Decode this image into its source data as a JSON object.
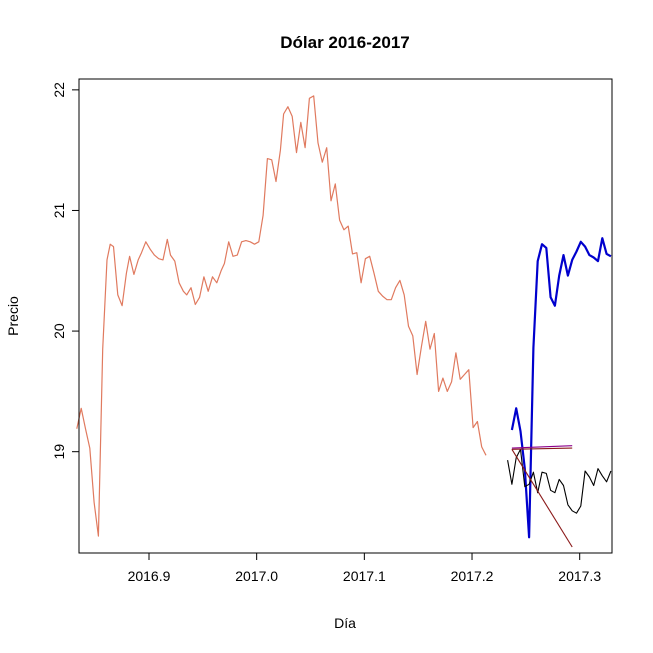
{
  "chart_data": {
    "type": "line",
    "title": "Dólar 2016-2017",
    "xlabel": "Día",
    "ylabel": "Precio",
    "xlim": [
      2016.835,
      2017.33
    ],
    "ylim": [
      18.16,
      22.09
    ],
    "x_ticks": [
      {
        "value": 2016.9,
        "label": "2016.9"
      },
      {
        "value": 2017.0,
        "label": "2017.0"
      },
      {
        "value": 2017.1,
        "label": "2017.1"
      },
      {
        "value": 2017.2,
        "label": "2017.2"
      },
      {
        "value": 2017.3,
        "label": "2017.3"
      }
    ],
    "y_ticks": [
      {
        "value": 19,
        "label": "19"
      },
      {
        "value": 20,
        "label": "20"
      },
      {
        "value": 21,
        "label": "21"
      },
      {
        "value": 22,
        "label": "22"
      }
    ],
    "series": [
      {
        "color": "#e07a5f",
        "width": 1.2,
        "x": [
          2016.833,
          2016.837,
          2016.841,
          2016.845,
          2016.849,
          2016.853,
          2016.857,
          2016.861,
          2016.864,
          2016.867,
          2016.871,
          2016.875,
          2016.879,
          2016.882,
          2016.886,
          2016.89,
          2016.893,
          2016.897,
          2016.901,
          2016.905,
          2016.909,
          2016.913,
          2016.917,
          2016.92,
          2016.924,
          2016.928,
          2016.932,
          2016.935,
          2016.939,
          2016.943,
          2016.947,
          2016.951,
          2016.955,
          2016.959,
          2016.963,
          2016.967,
          2016.97,
          2016.974,
          2016.978,
          2016.982,
          2016.986,
          2016.99,
          2016.994,
          2016.998,
          2017.002,
          2017.006,
          2017.01,
          2017.014,
          2017.018,
          2017.022,
          2017.025,
          2017.029,
          2017.033,
          2017.037,
          2017.041,
          2017.045,
          2017.049,
          2017.053,
          2017.057,
          2017.061,
          2017.065,
          2017.069,
          2017.073,
          2017.077,
          2017.081,
          2017.085,
          2017.089,
          2017.093,
          2017.097,
          2017.101,
          2017.105,
          2017.109,
          2017.113,
          2017.117,
          2017.121,
          2017.125,
          2017.129,
          2017.133,
          2017.137,
          2017.141,
          2017.145,
          2017.149,
          2017.153,
          2017.157,
          2017.161,
          2017.165,
          2017.169,
          2017.173,
          2017.177,
          2017.181,
          2017.185,
          2017.189,
          2017.193,
          2017.197,
          2017.201,
          2017.205,
          2017.209,
          2017.213
        ],
        "y": [
          19.19,
          19.36,
          19.19,
          19.03,
          18.58,
          18.3,
          19.85,
          20.59,
          20.72,
          20.7,
          20.3,
          20.21,
          20.48,
          20.62,
          20.47,
          20.59,
          20.65,
          20.74,
          20.68,
          20.63,
          20.6,
          20.59,
          20.76,
          20.63,
          20.58,
          20.4,
          20.33,
          20.3,
          20.36,
          20.22,
          20.28,
          20.45,
          20.33,
          20.45,
          20.4,
          20.5,
          20.56,
          20.74,
          20.62,
          20.63,
          20.74,
          20.75,
          20.74,
          20.72,
          20.74,
          20.96,
          21.43,
          21.42,
          21.24,
          21.5,
          21.8,
          21.86,
          21.78,
          21.48,
          21.73,
          21.52,
          21.93,
          21.95,
          21.56,
          21.4,
          21.52,
          21.08,
          21.22,
          20.92,
          20.84,
          20.87,
          20.64,
          20.65,
          20.4,
          20.6,
          20.62,
          20.48,
          20.33,
          20.29,
          20.26,
          20.26,
          20.36,
          20.42,
          20.3,
          20.04,
          19.96,
          19.64,
          19.87,
          20.08,
          19.85,
          19.98,
          19.5,
          19.61,
          19.5,
          19.58,
          19.82,
          19.6,
          19.64,
          19.68,
          19.2,
          19.25,
          19.04,
          18.97
        ]
      },
      {
        "color": "#0000cd",
        "width": 2.2,
        "x": [
          2017.237,
          2017.241,
          2017.245,
          2017.249,
          2017.253,
          2017.257,
          2017.261,
          2017.265,
          2017.269,
          2017.273,
          2017.277,
          2017.281,
          2017.285,
          2017.289,
          2017.293,
          2017.297,
          2017.301,
          2017.305,
          2017.309,
          2017.313,
          2017.317,
          2017.321,
          2017.325,
          2017.329
        ],
        "y": [
          19.18,
          19.36,
          19.17,
          18.86,
          18.29,
          19.86,
          20.58,
          20.72,
          20.69,
          20.28,
          20.21,
          20.46,
          20.63,
          20.46,
          20.59,
          20.66,
          20.74,
          20.7,
          20.63,
          20.61,
          20.58,
          20.77,
          20.64,
          20.62
        ]
      },
      {
        "color": "#000000",
        "width": 1.1,
        "x": [
          2017.233,
          2017.237,
          2017.241,
          2017.245,
          2017.249,
          2017.253,
          2017.257,
          2017.261,
          2017.265,
          2017.269,
          2017.273,
          2017.277,
          2017.281,
          2017.285,
          2017.289,
          2017.293,
          2017.297,
          2017.301,
          2017.305,
          2017.309,
          2017.313,
          2017.317,
          2017.321,
          2017.325,
          2017.329
        ],
        "y": [
          18.93,
          18.73,
          18.95,
          19.02,
          18.71,
          18.73,
          18.83,
          18.66,
          18.83,
          18.82,
          18.68,
          18.66,
          18.77,
          18.72,
          18.56,
          18.51,
          18.49,
          18.55,
          18.84,
          18.79,
          18.72,
          18.86,
          18.8,
          18.75,
          18.84
        ]
      },
      {
        "color": "#8b1a1a",
        "width": 1.1,
        "x": [
          2017.237,
          2017.293
        ],
        "y": [
          19.02,
          18.21
        ]
      },
      {
        "color": "#8b008b",
        "width": 1.1,
        "x": [
          2017.237,
          2017.293
        ],
        "y": [
          19.03,
          19.05
        ]
      },
      {
        "color": "#8b1a1a",
        "width": 1.1,
        "x": [
          2017.237,
          2017.293
        ],
        "y": [
          19.02,
          19.03
        ]
      }
    ]
  }
}
